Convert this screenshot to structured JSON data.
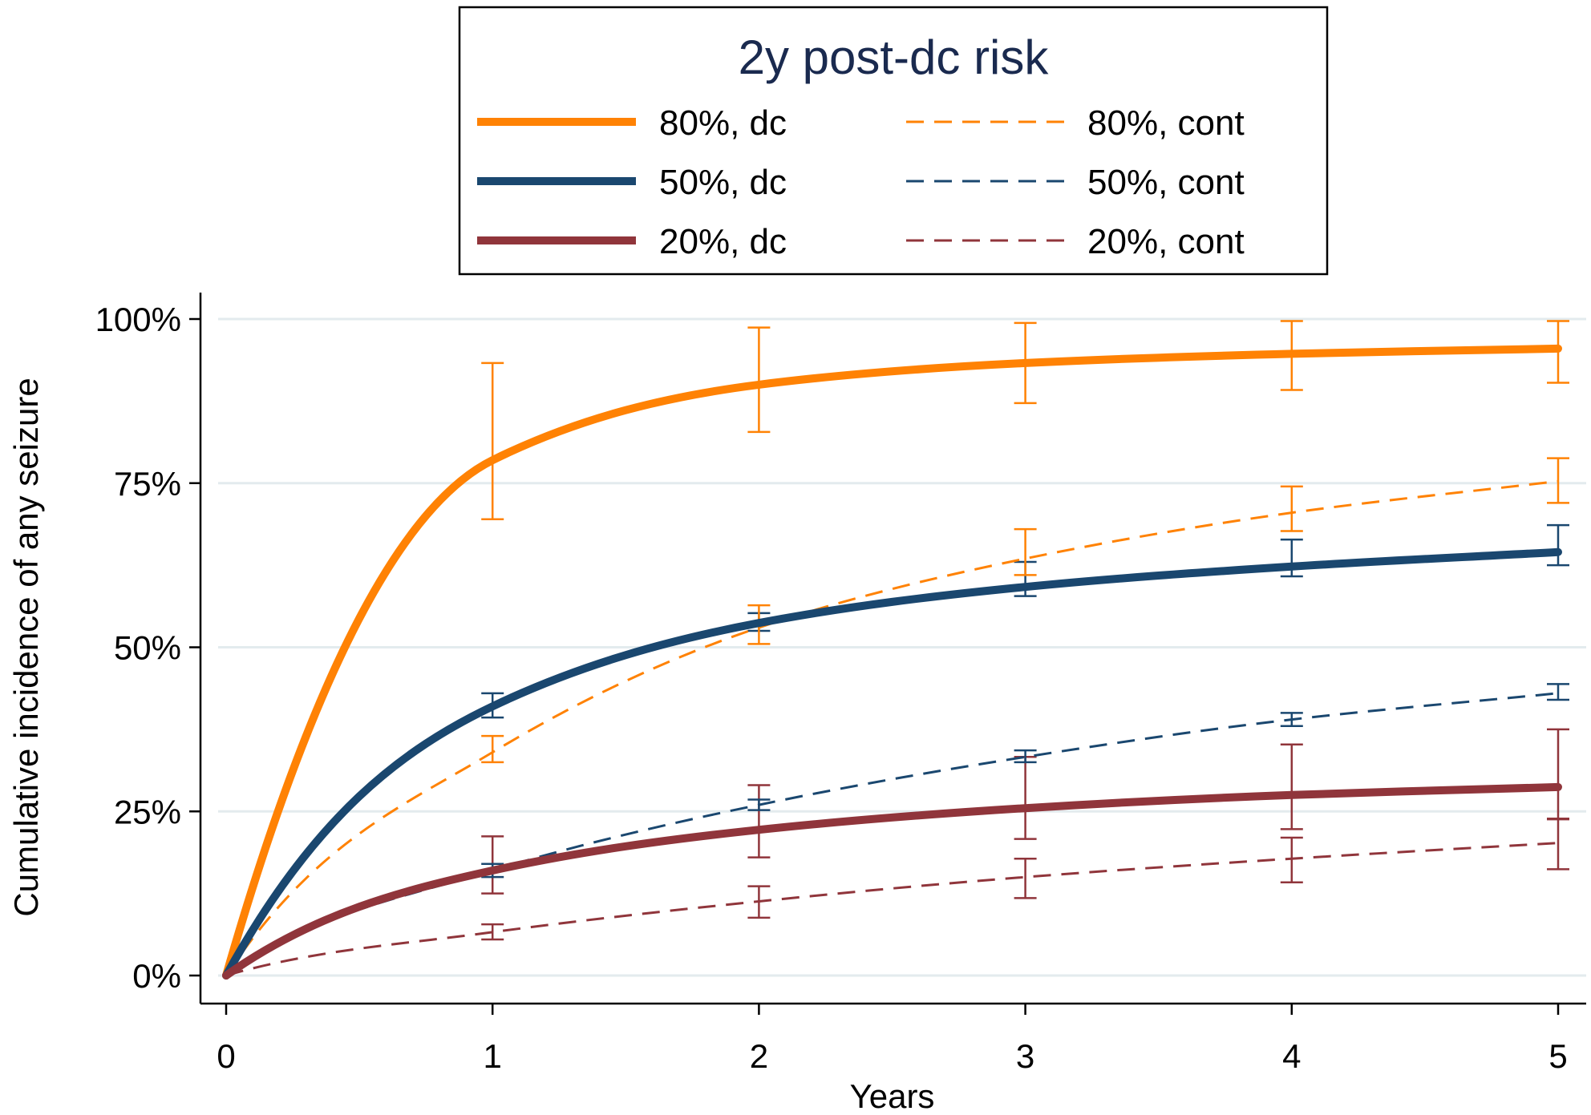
{
  "chart_data": {
    "type": "line",
    "title": "",
    "xlabel": "Years",
    "ylabel": "Cumulative incidence of any seizure",
    "xlim": [
      0,
      5
    ],
    "ylim": [
      0,
      1
    ],
    "x_ticks": [
      0,
      1,
      2,
      3,
      4,
      5
    ],
    "x_tick_labels": [
      "0",
      "1",
      "2",
      "3",
      "4",
      "5"
    ],
    "y_ticks": [
      0,
      0.25,
      0.5,
      0.75,
      1.0
    ],
    "y_tick_labels": [
      "0%",
      "25%",
      "50%",
      "75%",
      "100%"
    ],
    "grid": "horizontal",
    "legend": {
      "title": "2y post-dc risk",
      "placement": "top",
      "columns": 2
    },
    "series": [
      {
        "name": "80%, dc",
        "color": "#ff8204",
        "style": "solid",
        "x": [
          0,
          1,
          2,
          3,
          4,
          5
        ],
        "y": [
          0,
          0.785,
          0.9,
          0.933,
          0.947,
          0.955
        ],
        "ci": [
          [
            0.695,
            0.933
          ],
          [
            0.828,
            0.987
          ],
          [
            0.872,
            0.994
          ],
          [
            0.892,
            0.997
          ],
          [
            0.903,
            0.997
          ]
        ]
      },
      {
        "name": "50%, dc",
        "color": "#1a476f",
        "style": "solid",
        "x": [
          0,
          1,
          2,
          3,
          4,
          5
        ],
        "y": [
          0,
          0.41,
          0.537,
          0.592,
          0.623,
          0.645
        ],
        "ci": [
          [
            0.393,
            0.43
          ],
          [
            0.525,
            0.552
          ],
          [
            0.578,
            0.63
          ],
          [
            0.608,
            0.664
          ],
          [
            0.625,
            0.686
          ]
        ]
      },
      {
        "name": "20%, dc",
        "color": "#90353b",
        "style": "solid",
        "x": [
          0,
          1,
          2,
          3,
          4,
          5
        ],
        "y": [
          0,
          0.16,
          0.222,
          0.255,
          0.275,
          0.287
        ],
        "ci": [
          [
            0.125,
            0.212
          ],
          [
            0.18,
            0.29
          ],
          [
            0.208,
            0.333
          ],
          [
            0.223,
            0.352
          ],
          [
            0.239,
            0.375
          ]
        ]
      },
      {
        "name": "80%, cont",
        "color": "#ff8204",
        "style": "dashed",
        "x": [
          0,
          1,
          2,
          3,
          4,
          5
        ],
        "y": [
          0,
          0.34,
          0.53,
          0.635,
          0.705,
          0.753
        ],
        "ci": [
          [
            0.325,
            0.365
          ],
          [
            0.505,
            0.564
          ],
          [
            0.61,
            0.68
          ],
          [
            0.677,
            0.745
          ],
          [
            0.72,
            0.788
          ]
        ]
      },
      {
        "name": "50%, cont",
        "color": "#1a476f",
        "style": "dashed",
        "x": [
          0,
          1,
          2,
          3,
          4,
          5
        ],
        "y": [
          0,
          0.16,
          0.26,
          0.333,
          0.39,
          0.43
        ],
        "ci": [
          [
            0.15,
            0.17
          ],
          [
            0.252,
            0.268
          ],
          [
            0.325,
            0.343
          ],
          [
            0.38,
            0.4
          ],
          [
            0.42,
            0.444
          ]
        ]
      },
      {
        "name": "20%, cont",
        "color": "#90353b",
        "style": "dashed",
        "x": [
          0,
          1,
          2,
          3,
          4,
          5
        ],
        "y": [
          0,
          0.066,
          0.113,
          0.15,
          0.178,
          0.202
        ],
        "ci": [
          [
            0.055,
            0.078
          ],
          [
            0.088,
            0.136
          ],
          [
            0.118,
            0.178
          ],
          [
            0.142,
            0.21
          ],
          [
            0.162,
            0.238
          ]
        ]
      }
    ]
  }
}
